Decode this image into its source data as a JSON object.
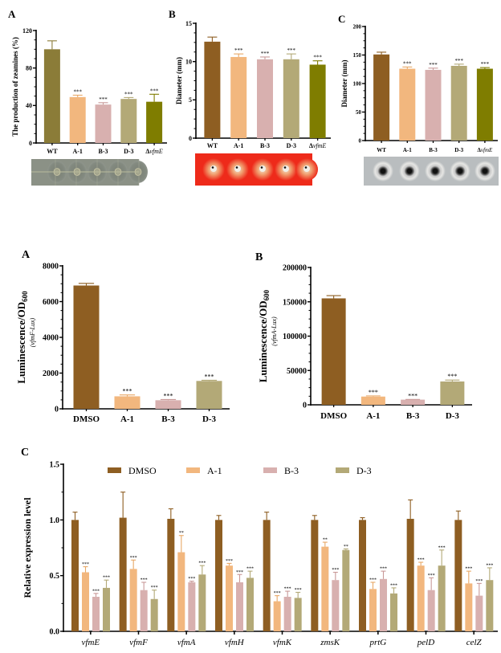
{
  "colors": {
    "dmso_wt_brown": "#8E5E22",
    "a1_orange": "#F2B77E",
    "b3_pink": "#D8B0AF",
    "d3_khaki": "#B3A977",
    "vfmE_olive": "#7F7D00",
    "wt_olive_panelA": "#8B7C38"
  },
  "chart_data": [
    {
      "id": "top-A",
      "panel_label": "A",
      "type": "bar",
      "title": "",
      "xlabel": "",
      "ylabel": "The production of zeamines (%)",
      "ylim": [
        0,
        120
      ],
      "yticks": [
        "0",
        "40",
        "80",
        "120"
      ],
      "categories": [
        "WT",
        "A-1",
        "B-3",
        "D-3",
        "ΔvfmE"
      ],
      "values": [
        100,
        49,
        41,
        47,
        44
      ],
      "errors": [
        9,
        2,
        2,
        1.5,
        8
      ],
      "significance": [
        "",
        "***",
        "***",
        "***",
        "***"
      ],
      "bar_colors": [
        "#8B7C38",
        "#F2B77E",
        "#D8B0AF",
        "#B3A977",
        "#7F7D00"
      ],
      "photo": "gray plate with five inhibition zones"
    },
    {
      "id": "top-B",
      "panel_label": "B",
      "type": "bar",
      "title": "",
      "xlabel": "",
      "ylabel": "Diameter (mm)",
      "ylim": [
        0,
        15
      ],
      "yticks": [
        "0",
        "5",
        "10",
        "15"
      ],
      "categories": [
        "WT",
        "A-1",
        "B-3",
        "D-3",
        "ΔvfmE"
      ],
      "values": [
        12.6,
        10.6,
        10.3,
        10.3,
        9.6
      ],
      "errors": [
        0.6,
        0.4,
        0.3,
        0.7,
        0.5
      ],
      "significance": [
        "",
        "***",
        "***",
        "***",
        "***"
      ],
      "bar_colors": [
        "#8E5E22",
        "#F2B77E",
        "#D8B0AF",
        "#B3A977",
        "#7F7D00"
      ],
      "photo": "red plate with five halos"
    },
    {
      "id": "top-C",
      "panel_label": "C",
      "type": "bar",
      "title": "",
      "xlabel": "",
      "ylabel": "Diameter (mm)",
      "ylim": [
        0,
        200
      ],
      "yticks": [
        "0",
        "50",
        "100",
        "150",
        "200"
      ],
      "categories": [
        "WT",
        "A-1",
        "B-3",
        "D-3",
        "ΔvfmE"
      ],
      "values": [
        151,
        126,
        124,
        131,
        126
      ],
      "errors": [
        4,
        3,
        3,
        3,
        2
      ],
      "significance": [
        "",
        "***",
        "***",
        "***",
        "***"
      ],
      "bar_colors": [
        "#8E5E22",
        "#F2B77E",
        "#D8B0AF",
        "#B3A977",
        "#7F7D00"
      ],
      "photo": "gray plate with five dark colonies"
    },
    {
      "id": "mid-A",
      "panel_label": "A",
      "type": "bar",
      "title": "",
      "xlabel": "",
      "ylabel": "Luminescence/OD600",
      "ylabel_sub": "600",
      "ylabel2": "(vfmF-Lux)",
      "ylim": [
        0,
        8000
      ],
      "yticks": [
        "0",
        "2000",
        "4000",
        "6000",
        "8000"
      ],
      "categories": [
        "DMSO",
        "A-1",
        "B-3",
        "D-3"
      ],
      "values": [
        6900,
        700,
        480,
        1560
      ],
      "errors": [
        120,
        80,
        40,
        40
      ],
      "significance": [
        "",
        "***",
        "***",
        "***"
      ],
      "bar_colors": [
        "#8E5E22",
        "#F2B77E",
        "#D8B0AF",
        "#B3A977"
      ]
    },
    {
      "id": "mid-B",
      "panel_label": "B",
      "type": "bar",
      "title": "",
      "xlabel": "",
      "ylabel": "Luminescence/OD600",
      "ylabel_sub": "600",
      "ylabel2": "(vfmA-Lux)",
      "ylim": [
        0,
        200000
      ],
      "yticks": [
        "0",
        "50000",
        "100000",
        "150000",
        "200000"
      ],
      "categories": [
        "DMSO",
        "A-1",
        "B-3",
        "D-3"
      ],
      "values": [
        155000,
        12000,
        7500,
        34000
      ],
      "errors": [
        4000,
        1000,
        300,
        2000
      ],
      "significance": [
        "",
        "***",
        "***",
        "***"
      ],
      "bar_colors": [
        "#8E5E22",
        "#F2B77E",
        "#D8B0AF",
        "#B3A977"
      ]
    },
    {
      "id": "bottom-C",
      "panel_label": "C",
      "type": "bar",
      "title": "",
      "xlabel": "",
      "ylabel": "Relative expression level",
      "ylim": [
        0,
        1.5
      ],
      "yticks": [
        "0.0",
        "0.5",
        "1.0",
        "1.5"
      ],
      "legend_position": "top",
      "categories": [
        "vfmE",
        "vfmF",
        "vfmA",
        "vfmH",
        "vfmK",
        "zmsK",
        "prtG",
        "pelD",
        "celZ"
      ],
      "series": [
        {
          "name": "DMSO",
          "color": "#8E5E22",
          "values": [
            1.0,
            1.02,
            1.01,
            1.0,
            1.0,
            1.0,
            1.0,
            1.01,
            1.0
          ],
          "errors": [
            0.07,
            0.23,
            0.09,
            0.04,
            0.07,
            0.04,
            0.02,
            0.17,
            0.08
          ],
          "significance": [
            "",
            "",
            "",
            "",
            "",
            "",
            "",
            "",
            ""
          ]
        },
        {
          "name": "A-1",
          "color": "#F2B77E",
          "values": [
            0.53,
            0.56,
            0.71,
            0.59,
            0.27,
            0.76,
            0.38,
            0.59,
            0.43
          ],
          "errors": [
            0.05,
            0.08,
            0.15,
            0.02,
            0.05,
            0.04,
            0.06,
            0.03,
            0.11
          ],
          "significance": [
            "***",
            "***",
            "**",
            "***",
            "***",
            "**",
            "***",
            "***",
            "***"
          ]
        },
        {
          "name": "B-3",
          "color": "#D8B0AF",
          "values": [
            0.31,
            0.37,
            0.44,
            0.44,
            0.31,
            0.46,
            0.47,
            0.37,
            0.32
          ],
          "errors": [
            0.03,
            0.07,
            0.01,
            0.07,
            0.05,
            0.07,
            0.07,
            0.11,
            0.11
          ],
          "significance": [
            "***",
            "***",
            "***",
            "***",
            "***",
            "***",
            "***",
            "***",
            "***"
          ]
        },
        {
          "name": "D-3",
          "color": "#B3A977",
          "values": [
            0.39,
            0.29,
            0.51,
            0.48,
            0.3,
            0.73,
            0.34,
            0.59,
            0.46
          ],
          "errors": [
            0.07,
            0.08,
            0.08,
            0.06,
            0.05,
            0.01,
            0.05,
            0.14,
            0.11
          ],
          "significance": [
            "***",
            "***",
            "***",
            "***",
            "***",
            "**",
            "***",
            "***",
            "***"
          ]
        }
      ]
    }
  ]
}
